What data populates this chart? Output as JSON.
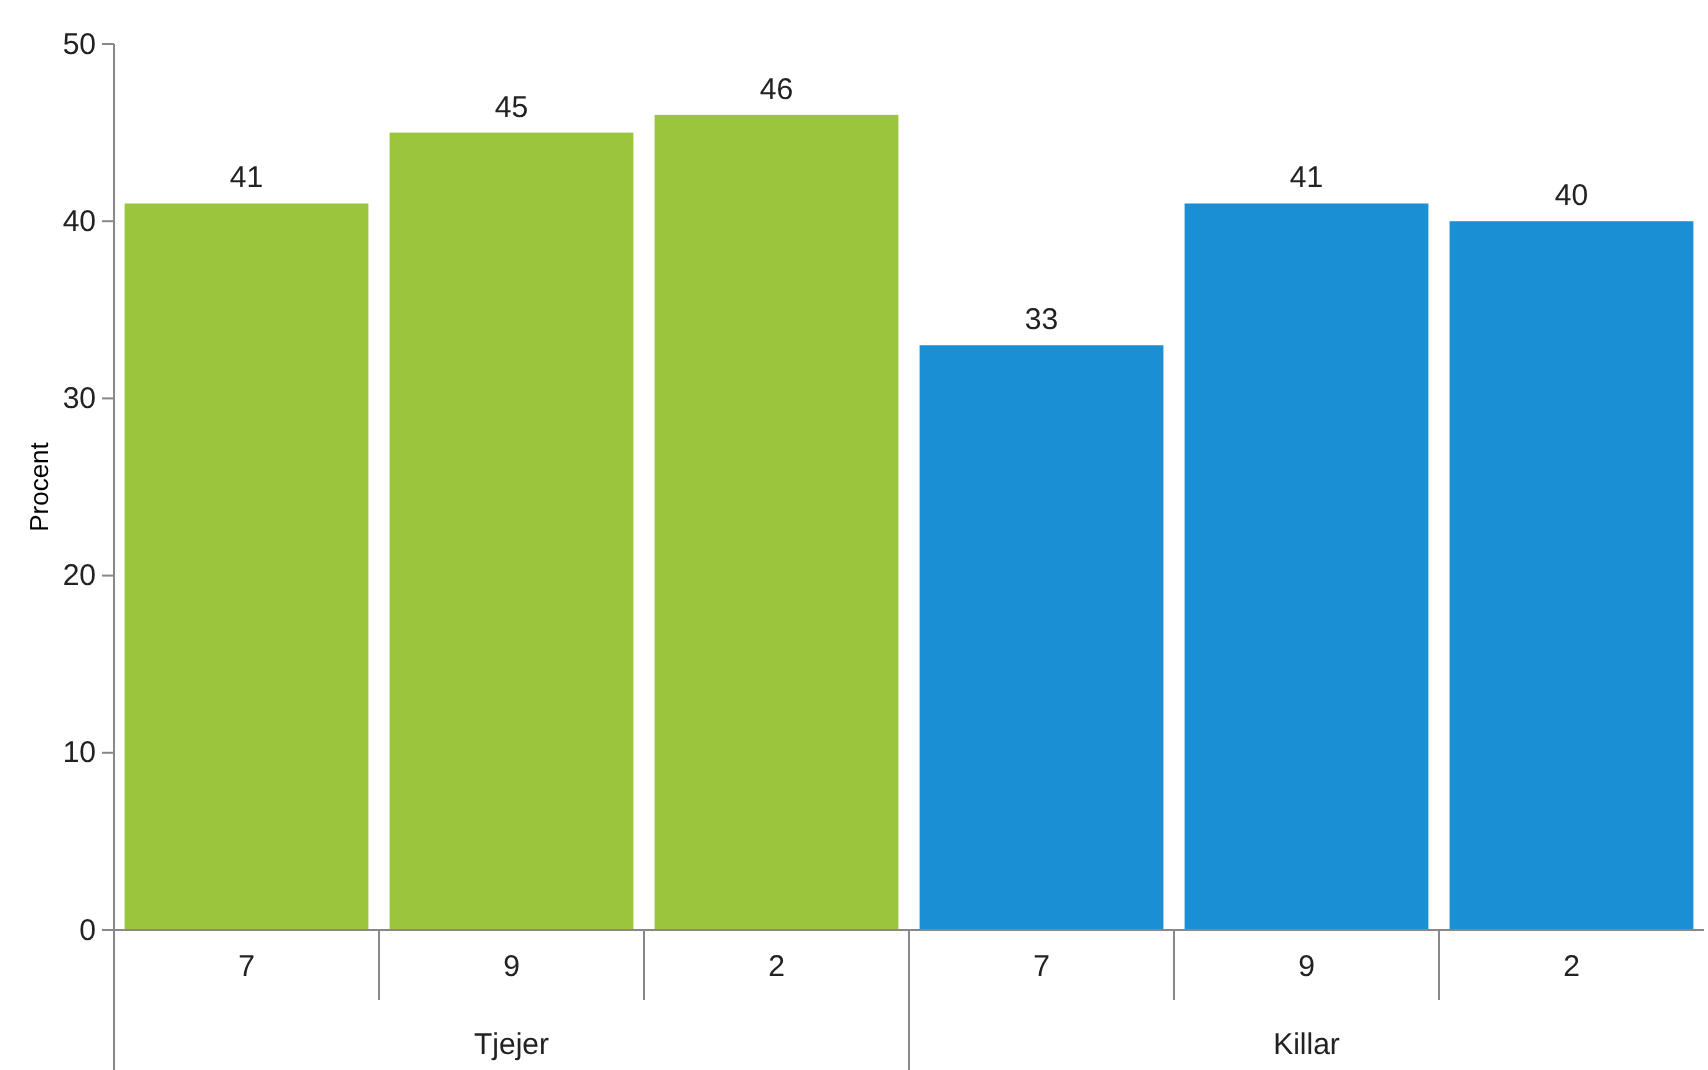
{
  "chart_data": {
    "type": "bar",
    "ylabel": "Procent",
    "categories": [
      "7",
      "9",
      "2",
      "7",
      "9",
      "2"
    ],
    "series": [
      {
        "color": "#9bc53d",
        "values": [
          41,
          45,
          46,
          null,
          null,
          null
        ]
      },
      {
        "color": "#1b8fd4",
        "values": [
          null,
          null,
          null,
          33,
          41,
          40
        ]
      }
    ],
    "annotations": [
      "Tjejer",
      "Killar"
    ],
    "ylim": [
      0,
      50
    ],
    "yticks": [
      0,
      10,
      20,
      30,
      40,
      50
    ],
    "data_labels": true,
    "grid": false
  }
}
